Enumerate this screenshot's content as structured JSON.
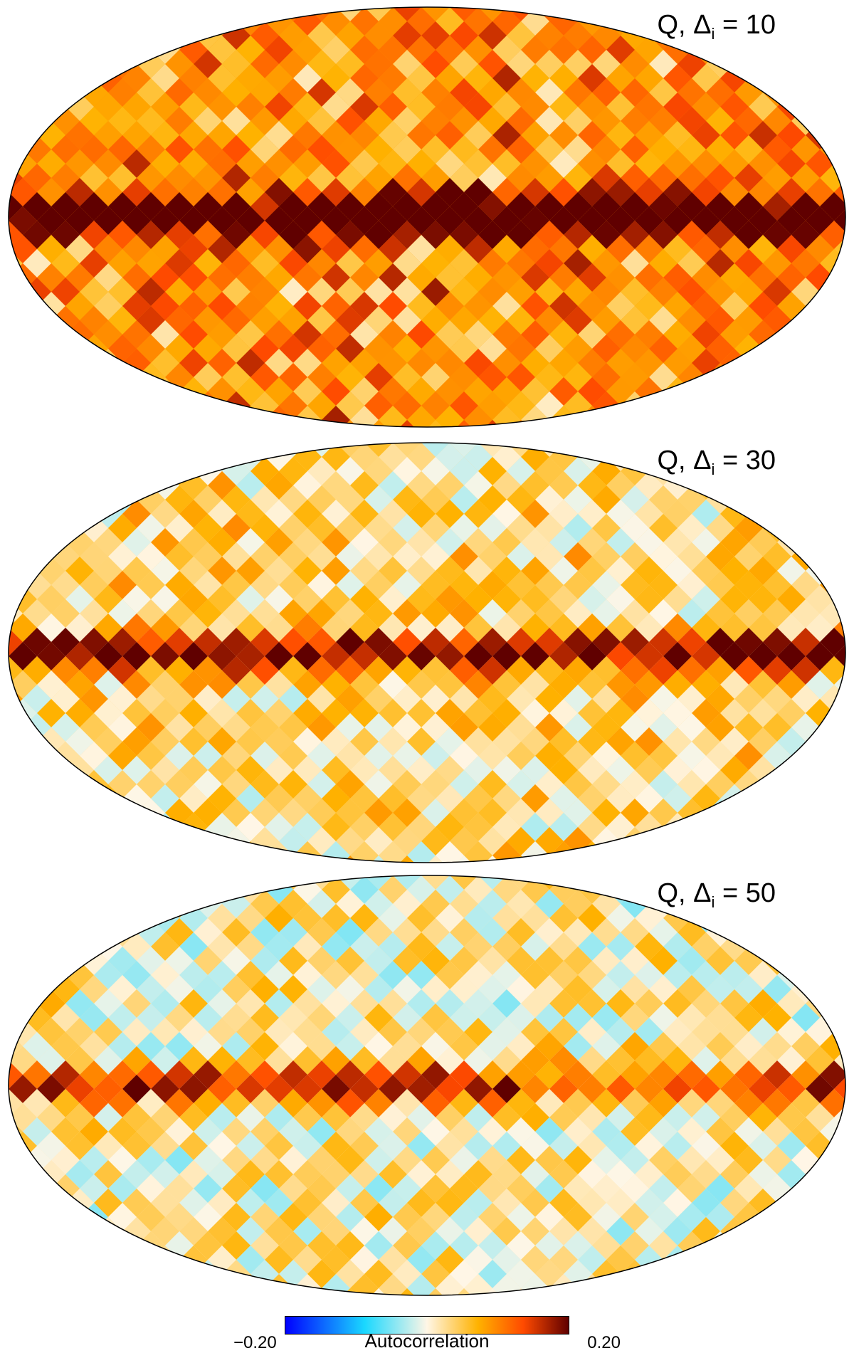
{
  "panels": [
    {
      "title_prefix": "Q, ",
      "title_symbol": "Δ",
      "title_sub": "i",
      "title_suffix": " = 10",
      "level": 0.75,
      "band_strength": 1.0
    },
    {
      "title_prefix": "Q, ",
      "title_symbol": "Δ",
      "title_sub": "i",
      "title_suffix": " = 30",
      "level": 0.25,
      "band_strength": 0.9
    },
    {
      "title_prefix": "Q, ",
      "title_symbol": "Δ",
      "title_sub": "i",
      "title_suffix": " = 50",
      "level": 0.12,
      "band_strength": 0.7
    }
  ],
  "colorbar": {
    "label": "Autocorrelation",
    "min_label": "−0.20",
    "max_label": "0.20",
    "min": -0.2,
    "max": 0.2,
    "colors": [
      "#0000ff",
      "#1ad8ff",
      "#fff6e6",
      "#ffb200",
      "#ff4a00",
      "#600000"
    ]
  }
}
